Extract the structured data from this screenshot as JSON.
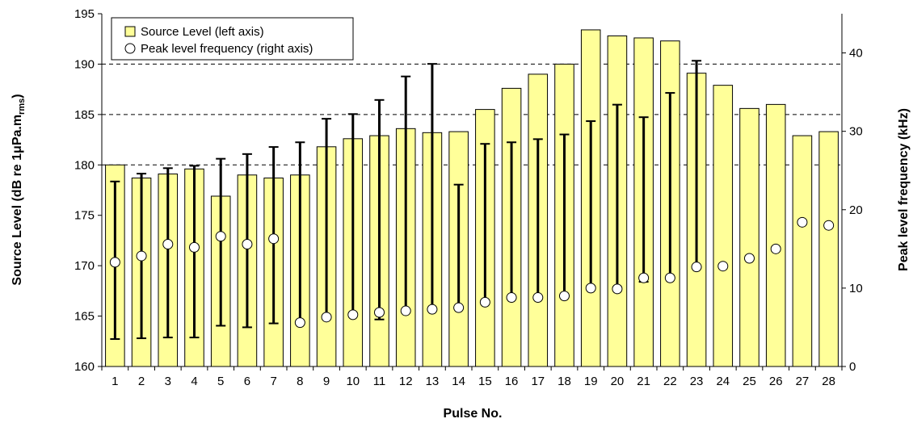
{
  "chart_data": {
    "type": "bar",
    "xlabel": "Pulse No.",
    "ylabel": "Source Level (dB re 1μPa.m",
    "ylabel_sub": "rms",
    "ylabel_tail": ")",
    "y2label": "Peak level frequency (kHz)",
    "categories": [
      "1",
      "2",
      "3",
      "4",
      "5",
      "6",
      "7",
      "8",
      "9",
      "10",
      "11",
      "12",
      "13",
      "14",
      "15",
      "16",
      "17",
      "18",
      "19",
      "20",
      "21",
      "22",
      "23",
      "24",
      "25",
      "26",
      "27",
      "28"
    ],
    "ylim": [
      160,
      195
    ],
    "yticks": [
      160,
      165,
      170,
      175,
      180,
      185,
      190,
      195
    ],
    "y2lim": [
      0,
      45
    ],
    "y2ticks": [
      0,
      10,
      20,
      30,
      40
    ],
    "grid": "dashed horizontal at 180, 185, 190",
    "grid_lines": [
      180,
      185,
      190
    ],
    "legend_position": "top-left",
    "series": [
      {
        "name": "Source Level (left axis)",
        "axis": "left",
        "kind": "bar",
        "values": [
          180.0,
          178.7,
          179.1,
          179.6,
          176.9,
          179.0,
          178.7,
          179.0,
          181.8,
          182.6,
          182.9,
          183.6,
          183.2,
          183.3,
          185.5,
          187.6,
          189.0,
          190.0,
          193.4,
          192.8,
          192.6,
          192.3,
          189.1,
          187.9,
          185.6,
          186.0,
          182.9,
          183.3
        ]
      },
      {
        "name": "Peak level frequency (right axis)",
        "axis": "right",
        "kind": "points",
        "values": [
          13.3,
          14.1,
          15.6,
          15.2,
          16.6,
          15.6,
          16.3,
          5.6,
          6.3,
          6.6,
          6.9,
          7.1,
          7.3,
          7.5,
          8.2,
          8.8,
          8.8,
          9.0,
          10.0,
          9.9,
          11.3,
          11.3,
          12.7,
          12.8,
          13.8,
          15.0,
          18.4,
          18.0
        ],
        "error_low": [
          3.5,
          3.6,
          3.7,
          3.7,
          5.2,
          5.0,
          5.5,
          null,
          null,
          null,
          6.0,
          null,
          null,
          null,
          null,
          null,
          null,
          null,
          null,
          null,
          10.8,
          null,
          null,
          null,
          null,
          null,
          null,
          null
        ],
        "error_high": [
          23.6,
          24.6,
          25.3,
          25.6,
          26.5,
          27.1,
          28.0,
          28.6,
          31.6,
          32.2,
          34.0,
          37.0,
          38.6,
          23.2,
          28.4,
          28.6,
          29.0,
          29.6,
          31.3,
          33.4,
          31.8,
          34.9,
          39.0,
          null,
          null,
          null,
          null,
          null
        ]
      }
    ]
  },
  "legend": {
    "bar_label": "Source Level (left axis)",
    "point_label": "Peak level frequency (right axis)"
  },
  "colors": {
    "bar_fill": "#FFFF99",
    "bar_stroke": "#000000",
    "point_fill": "#FFFFFF",
    "grid": "#000000"
  }
}
